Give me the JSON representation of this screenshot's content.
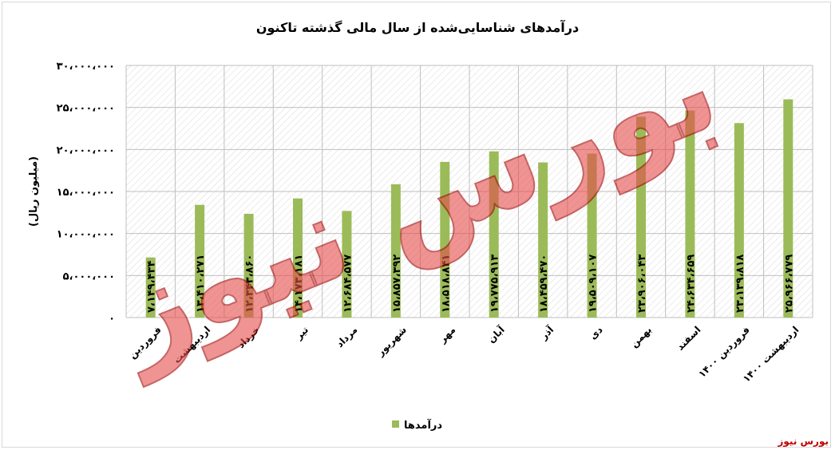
{
  "chart_data": {
    "type": "bar",
    "title": "درآمدهای شناسایی‌شده از سال مالی گذشته تاکنون",
    "ylabel": "(میلیون ریال)",
    "ylim": [
      0,
      30000000
    ],
    "yticks": [
      {
        "value": 0,
        "label": "۰"
      },
      {
        "value": 5000000,
        "label": "۵،۰۰۰،۰۰۰"
      },
      {
        "value": 10000000,
        "label": "۱۰،۰۰۰،۰۰۰"
      },
      {
        "value": 15000000,
        "label": "۱۵،۰۰۰،۰۰۰"
      },
      {
        "value": 20000000,
        "label": "۲۰،۰۰۰،۰۰۰"
      },
      {
        "value": 25000000,
        "label": "۲۵،۰۰۰،۰۰۰"
      },
      {
        "value": 30000000,
        "label": "۳۰،۰۰۰،۰۰۰"
      }
    ],
    "categories": [
      "فروردین",
      "اردیبهشت",
      "خرداد",
      "تیر",
      "مرداد",
      "شهریور",
      "مهر",
      "آبان",
      "آذر",
      "دی",
      "بهمن",
      "اسفند",
      "فروردین ۱۴۰۰",
      "اردیبهشت ۱۴۰۰"
    ],
    "series": [
      {
        "name": "درآمدها",
        "color": "#9bbb59",
        "values": [
          7149434,
          13410271,
          12343860,
          14173181,
          12684577,
          15857392,
          18518841,
          19775913,
          18459470,
          19509107,
          23906043,
          24634659,
          23139818,
          25966779
        ],
        "labels": [
          "۷،۱۴۹،۴۳۴",
          "۱۳،۴۱۰،۲۷۱",
          "۱۲،۳۴۳،۸۶۰",
          "۱۴،۱۷۳،۱۸۱",
          "۱۲،۶۸۴،۵۷۷",
          "۱۵،۸۵۷،۳۹۲",
          "۱۸،۵۱۸،۸۴۱",
          "۱۹،۷۷۵،۹۱۳",
          "۱۸،۴۵۹،۴۷۰",
          "۱۹،۵۰۹،۱۰۷",
          "۲۳،۹۰۶،۰۴۳",
          "۲۴،۶۳۴،۶۵۹",
          "۲۳،۱۳۹،۸۱۸",
          "۲۵،۹۶۶،۷۷۹"
        ]
      }
    ],
    "grid": true,
    "legend_position": "bottom"
  },
  "colors": {
    "bar": "#9bbb59",
    "grid": "#bfbfbf",
    "hatch": "#d9d9d9",
    "brand": "#c00000",
    "watermark": "#e74c4c"
  },
  "watermark_text": "بورس نیوز",
  "footer_brand": "بورس نیوز"
}
